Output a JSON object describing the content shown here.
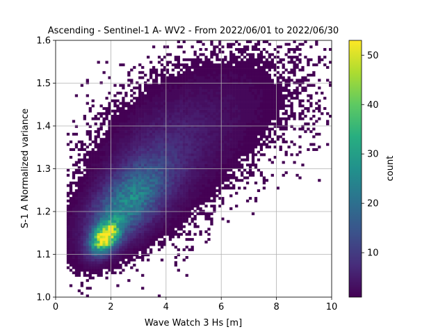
{
  "chart_data": {
    "type": "heatmap",
    "title": "Ascending - Sentinel-1 A- WV2 - From 2022/06/01 to 2022/06/30",
    "xlabel": "Wave Watch 3 Hs [m]",
    "ylabel": "S-1 A Normalized variance",
    "xlim": [
      0,
      10
    ],
    "ylim": [
      1.0,
      1.6
    ],
    "xticks": [
      "0",
      "2",
      "4",
      "6",
      "8",
      "10"
    ],
    "yticks": [
      "1.0",
      "1.1",
      "1.2",
      "1.3",
      "1.4",
      "1.5",
      "1.6"
    ],
    "grid": true,
    "colorbar": {
      "label": "count",
      "range": [
        1,
        53
      ],
      "ticks": [
        "10",
        "20",
        "30",
        "40",
        "50"
      ],
      "colormap": "viridis"
    },
    "bins": {
      "nx": 100,
      "ny": 100
    },
    "density_model": [
      {
        "x": 1.8,
        "y": 1.14,
        "sx": 0.35,
        "sy": 0.025,
        "rho": 0.4,
        "peak": 50
      },
      {
        "x": 2.6,
        "y": 1.22,
        "sx": 0.9,
        "sy": 0.06,
        "rho": 0.55,
        "peak": 22
      },
      {
        "x": 3.8,
        "y": 1.32,
        "sx": 1.4,
        "sy": 0.09,
        "rho": 0.4,
        "peak": 6
      },
      {
        "x": 6.0,
        "y": 1.44,
        "sx": 1.8,
        "sy": 0.08,
        "rho": 0.3,
        "peak": 1.8
      }
    ]
  }
}
